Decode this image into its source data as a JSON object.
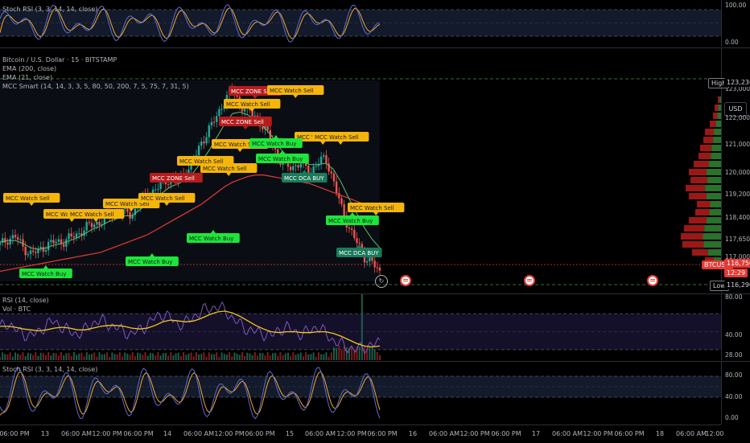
{
  "colors": {
    "background": "#000000",
    "bull": "#26a69a",
    "bear": "#ef5350",
    "ema200": "#e53935",
    "ema21": "#66bb6a",
    "sell_label": "#f5b50a",
    "buy_label": "#1de63a",
    "zone_sell": "#b71c1c",
    "dca_buy": "#1b7a5a",
    "stoch_k": "#5b6bd6",
    "stoch_d": "#f5a623",
    "rsi_line": "#7e57c2",
    "rsi_ma": "#f5c518",
    "price_tag": "#e53935"
  },
  "top_stoch": {
    "title": "Stoch RSI (3, 3, 14, 14, close)",
    "scale": [
      "100.00",
      "0.00"
    ]
  },
  "main": {
    "symbol_title": "Bitcoin / U.S. Dollar · 15 · BITSTAMP",
    "indicators": [
      "EMA (200, close)",
      "EMA (21, close)",
      "MCC Smart (14, 14, 3, 3, 5, 80, 50, 200, 7, 5, 75, 7, 31, 5)"
    ],
    "currency_button": "USD",
    "high_label": "High",
    "high_value": "123,236",
    "low_label": "Low",
    "low_value": "116,290",
    "symbol_tag": "BTCUSD",
    "price_value": "116,756",
    "countdown": "12:29",
    "price_scale": [
      "123,000",
      "122,000",
      "121,000",
      "120,000",
      "119,200",
      "118,400",
      "117,650",
      "117,000"
    ],
    "signals": {
      "watch_sell": "MCC Watch Sell",
      "watch_buy": "MCC Watch Buy",
      "zone_sell": "MCC ZONE Sell",
      "dca_buy": "MCC DCA BUY"
    }
  },
  "chart_data": {
    "type": "line",
    "title": "Bitcoin / U.S. Dollar · 15 · BITSTAMP",
    "x_ticks": [
      "06:00 PM",
      "13",
      "06:00 AM",
      "12:00 PM",
      "06:00 PM",
      "14",
      "06:00 AM",
      "12:00 PM",
      "06:00 PM",
      "15",
      "06:00 AM",
      "12:00 PM",
      "06:00 PM",
      "16",
      "06:00 AM",
      "12:00 PM",
      "06:00 PM",
      "17",
      "06:00 AM",
      "12:00 PM",
      "06:00 PM",
      "18",
      "06:00 AM",
      "12:00"
    ],
    "series": [
      {
        "name": "BTCUSD",
        "values": [
          117700,
          117900,
          118000,
          117600,
          117400,
          117500,
          117700,
          117800,
          117800,
          117950,
          118050,
          118300,
          118400,
          118500,
          118700,
          118800,
          118900,
          118700,
          119200,
          119400,
          119600,
          119800,
          120000,
          119900,
          120200,
          120600,
          121200,
          121700,
          122100,
          122700,
          123000,
          122500,
          122300,
          122100,
          121700,
          121300,
          120600,
          120400,
          120400,
          120500,
          120200,
          120500,
          120700,
          119900,
          119000,
          118300,
          117800,
          117300,
          117100,
          116756
        ]
      },
      {
        "name": "EMA (200, close)",
        "values": [
          116800,
          116850,
          116900,
          116950,
          117000,
          117050,
          117100,
          117150,
          117200,
          117250,
          117300,
          117350,
          117400,
          117450,
          117550,
          117650,
          117750,
          117850,
          117950,
          118050,
          118200,
          118350,
          118500,
          118650,
          118800,
          118950,
          119100,
          119300,
          119500,
          119700,
          119850,
          119950,
          120050,
          120100,
          120100,
          120050,
          120000,
          119950,
          119900,
          119850,
          119800,
          119700,
          119600,
          119500,
          119400,
          119300,
          119200,
          119100,
          119000,
          118900
        ]
      },
      {
        "name": "EMA (21, close)",
        "values": [
          117800,
          117850,
          117850,
          117750,
          117600,
          117550,
          117600,
          117700,
          117750,
          117850,
          117950,
          118100,
          118250,
          118350,
          118500,
          118600,
          118700,
          118700,
          118900,
          119100,
          119300,
          119500,
          119700,
          119800,
          119950,
          120200,
          120550,
          120950,
          121400,
          121850,
          122200,
          122250,
          122150,
          122000,
          121750,
          121450,
          121050,
          120750,
          120600,
          120550,
          120450,
          120450,
          120500,
          120300,
          119850,
          119300,
          118800,
          118300,
          117900,
          117600
        ]
      }
    ],
    "ylim": [
      116290,
      123500
    ]
  },
  "rsi": {
    "title": "RSI (14, close)",
    "volume_title": "Vol · BTC",
    "scale": [
      "80.00",
      "40.00",
      "28.00"
    ],
    "values": [
      55,
      60,
      52,
      48,
      45,
      50,
      58,
      62,
      55,
      50,
      47,
      52,
      60,
      63,
      58,
      55,
      50,
      47,
      52,
      58,
      66,
      70,
      65,
      58,
      60,
      67,
      73,
      76,
      78,
      74,
      65,
      58,
      52,
      50,
      48,
      45,
      52,
      55,
      50,
      47,
      52,
      56,
      48,
      40,
      36,
      32,
      30,
      33,
      35,
      38
    ],
    "ma_values": [
      56,
      56,
      55,
      53,
      52,
      51,
      52,
      54,
      55,
      54,
      52,
      52,
      54,
      56,
      57,
      57,
      56,
      54,
      53,
      54,
      57,
      61,
      63,
      62,
      61,
      62,
      65,
      69,
      72,
      73,
      71,
      67,
      62,
      57,
      53,
      50,
      49,
      50,
      50,
      49,
      49,
      50,
      50,
      48,
      45,
      41,
      37,
      34,
      33,
      34
    ],
    "ylim": [
      20,
      90
    ]
  },
  "bottom_stoch": {
    "title": "Stoch RSI (3, 3, 14, 14, close)",
    "scale": [
      "80.00",
      "40.00",
      "0.00"
    ]
  }
}
